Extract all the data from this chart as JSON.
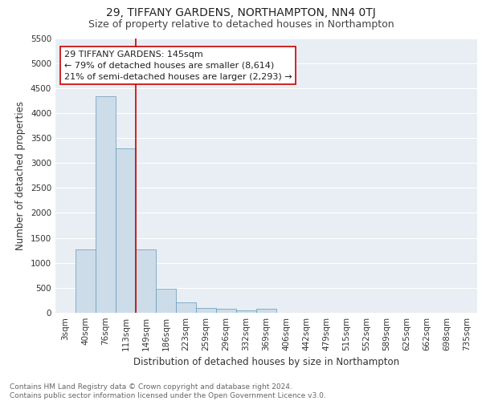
{
  "title1": "29, TIFFANY GARDENS, NORTHAMPTON, NN4 0TJ",
  "title2": "Size of property relative to detached houses in Northampton",
  "xlabel": "Distribution of detached houses by size in Northampton",
  "ylabel": "Number of detached properties",
  "bin_labels": [
    "3sqm",
    "40sqm",
    "76sqm",
    "113sqm",
    "149sqm",
    "186sqm",
    "223sqm",
    "259sqm",
    "296sqm",
    "332sqm",
    "369sqm",
    "406sqm",
    "442sqm",
    "479sqm",
    "515sqm",
    "552sqm",
    "589sqm",
    "625sqm",
    "662sqm",
    "698sqm",
    "735sqm"
  ],
  "bar_values": [
    0,
    1270,
    4340,
    3300,
    1270,
    480,
    215,
    95,
    80,
    55,
    75,
    0,
    0,
    0,
    0,
    0,
    0,
    0,
    0,
    0,
    0
  ],
  "bar_color": "#ccdce8",
  "bar_edge_color": "#6699bb",
  "vline_color": "#cc0000",
  "ylim": [
    0,
    5500
  ],
  "yticks": [
    0,
    500,
    1000,
    1500,
    2000,
    2500,
    3000,
    3500,
    4000,
    4500,
    5000,
    5500
  ],
  "annotation_line1": "29 TIFFANY GARDENS: 145sqm",
  "annotation_line2": "← 79% of detached houses are smaller (8,614)",
  "annotation_line3": "21% of semi-detached houses are larger (2,293) →",
  "annotation_box_color": "#ffffff",
  "annotation_box_edge": "#cc0000",
  "footnote": "Contains HM Land Registry data © Crown copyright and database right 2024.\nContains public sector information licensed under the Open Government Licence v3.0.",
  "bg_color": "#e8eef4",
  "grid_color": "#ffffff",
  "title1_fontsize": 10,
  "title2_fontsize": 9,
  "xlabel_fontsize": 8.5,
  "ylabel_fontsize": 8.5,
  "tick_fontsize": 7.5,
  "annotation_fontsize": 8,
  "footnote_fontsize": 6.5
}
